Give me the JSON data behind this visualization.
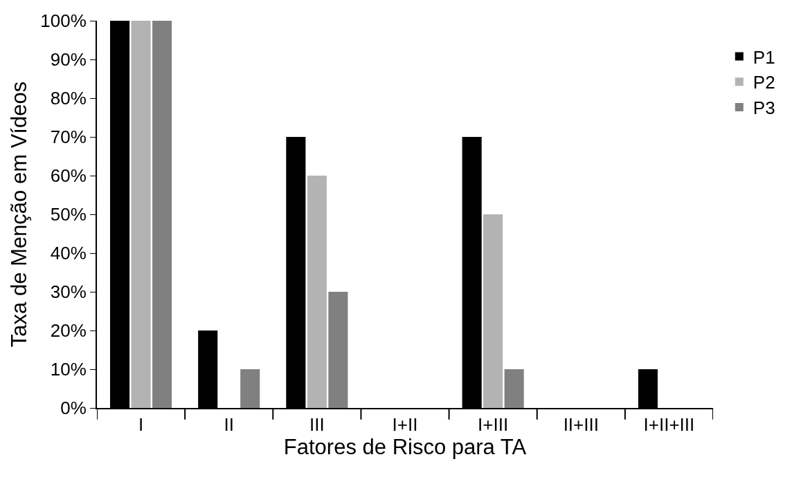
{
  "chart_data": {
    "type": "bar",
    "xlabel": "Fatores de Risco para TA",
    "ylabel": "Taxa de Menção em Vídeos",
    "categories": [
      "I",
      "II",
      "III",
      "I+II",
      "I+III",
      "II+III",
      "I+II+III"
    ],
    "series": [
      {
        "name": "P1",
        "color": "#000000",
        "values": [
          100,
          20,
          70,
          0,
          70,
          0,
          10
        ]
      },
      {
        "name": "P2",
        "color": "#b3b3b3",
        "values": [
          100,
          0,
          60,
          0,
          50,
          0,
          0
        ]
      },
      {
        "name": "P3",
        "color": "#808080",
        "values": [
          100,
          10,
          30,
          0,
          10,
          0,
          0
        ]
      }
    ],
    "ylim": [
      0,
      100
    ],
    "yticks": [
      {
        "value": 0,
        "label": "0%"
      },
      {
        "value": 10,
        "label": "10%"
      },
      {
        "value": 20,
        "label": "20%"
      },
      {
        "value": 30,
        "label": "30%"
      },
      {
        "value": 40,
        "label": "40%"
      },
      {
        "value": 50,
        "label": "50%"
      },
      {
        "value": 60,
        "label": "60%"
      },
      {
        "value": 70,
        "label": "70%"
      },
      {
        "value": 80,
        "label": "80%"
      },
      {
        "value": 90,
        "label": "90%"
      },
      {
        "value": 100,
        "label": "100%"
      }
    ],
    "legend": "right"
  }
}
